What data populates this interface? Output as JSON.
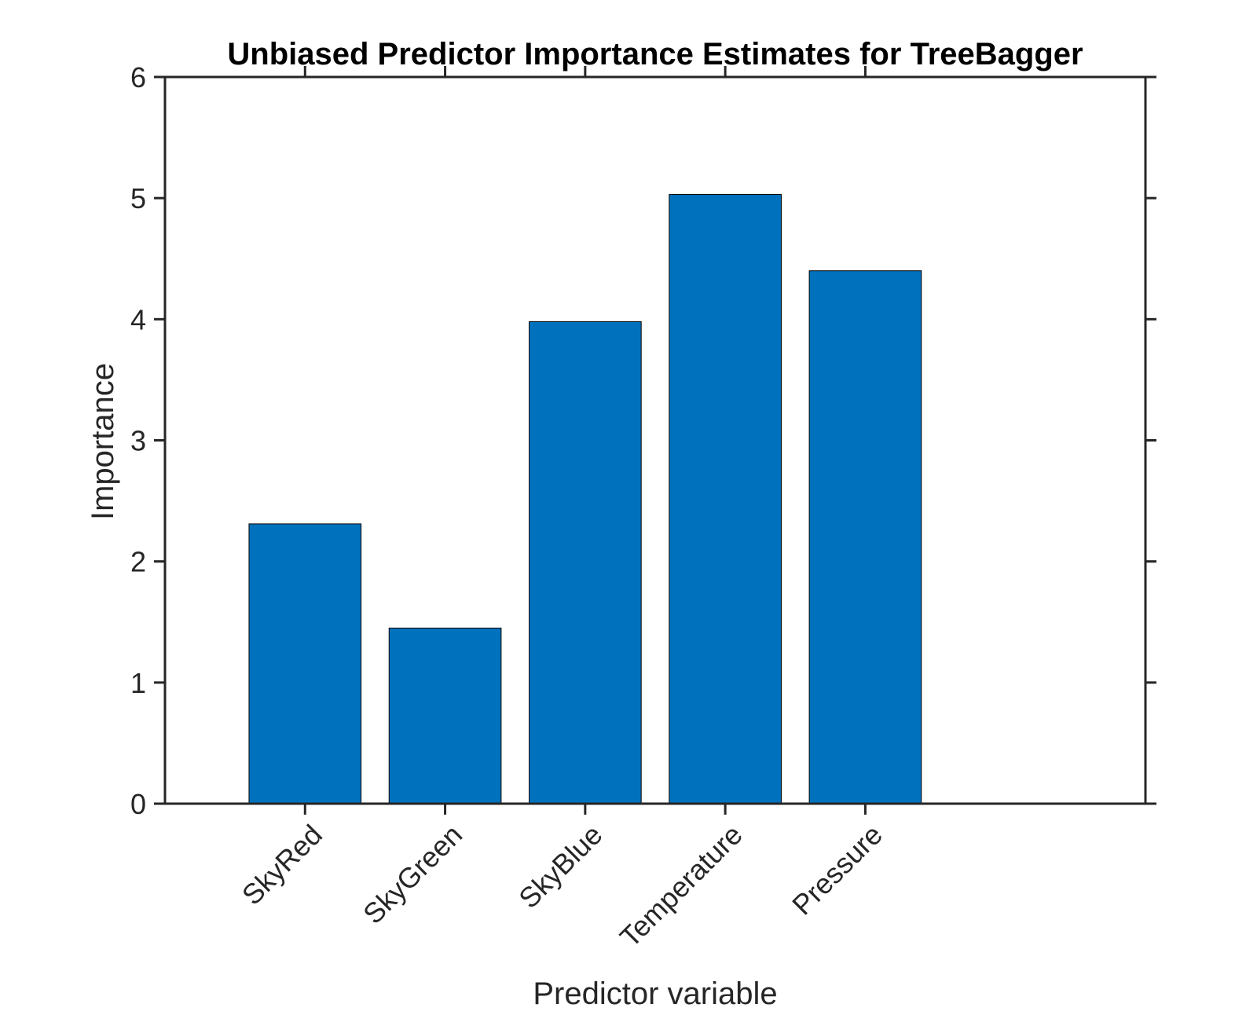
{
  "chart_data": {
    "type": "bar",
    "title": "Unbiased Predictor Importance Estimates for TreeBagger",
    "xlabel": "Predictor variable",
    "ylabel": "Importance",
    "categories": [
      "SkyRed",
      "SkyGreen",
      "SkyBlue",
      "Temperature",
      "Pressure"
    ],
    "values": [
      2.31,
      1.45,
      3.98,
      5.03,
      4.4
    ],
    "ylim": [
      0,
      6
    ],
    "yticks": [
      "0",
      "1",
      "2",
      "3",
      "4",
      "5",
      "6"
    ],
    "xlim": [
      0,
      7
    ],
    "grid": false,
    "legend": "none",
    "bar_color": "#0072BD",
    "axis_color": "#262626"
  }
}
